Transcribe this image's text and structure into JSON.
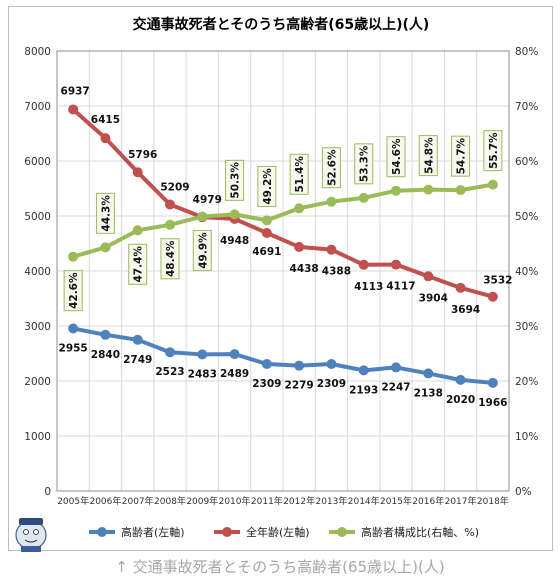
{
  "chart_data": {
    "type": "line",
    "title": "交通事故死者とそのうち高齢者(65歳以上)(人)",
    "categories": [
      "2005年",
      "2006年",
      "2007年",
      "2008年",
      "2009年",
      "2010年",
      "2011年",
      "2012年",
      "2013年",
      "2014年",
      "2015年",
      "2016年",
      "2017年",
      "2018年"
    ],
    "y_left": {
      "min": 0,
      "max": 8000,
      "step": 1000,
      "ticks": [
        "0",
        "1000",
        "2000",
        "3000",
        "4000",
        "5000",
        "6000",
        "7000",
        "8000"
      ]
    },
    "y_right": {
      "min": 0,
      "max": 80,
      "step": 10,
      "ticks": [
        "0%",
        "10%",
        "20%",
        "30%",
        "40%",
        "50%",
        "60%",
        "70%",
        "80%"
      ]
    },
    "grid": true,
    "legend_position": "bottom",
    "series": [
      {
        "name": "高齢者(左軸)",
        "axis": "left",
        "color": "#4f81bd",
        "values": [
          2955,
          2840,
          2749,
          2523,
          2483,
          2489,
          2309,
          2279,
          2309,
          2193,
          2247,
          2138,
          2020,
          1966
        ],
        "labels": [
          "2955",
          "2840",
          "2749",
          "2523",
          "2483",
          "2489",
          "2309",
          "2279",
          "2309",
          "2193",
          "2247",
          "2138",
          "2020",
          "1966"
        ]
      },
      {
        "name": "全年齢(左軸)",
        "axis": "left",
        "color": "#c0504d",
        "values": [
          6937,
          6415,
          5796,
          5209,
          4979,
          4948,
          4691,
          4438,
          4388,
          4113,
          4117,
          3904,
          3694,
          3532
        ],
        "labels": [
          "6937",
          "6415",
          "5796",
          "5209",
          "4979",
          "4948",
          "4691",
          "4438",
          "4388",
          "4113",
          "4117",
          "3904",
          "3694",
          "3532"
        ]
      },
      {
        "name": "高齢者構成比(右軸、%)",
        "axis": "right",
        "color": "#9bbb59",
        "values": [
          42.6,
          44.3,
          47.4,
          48.4,
          49.9,
          50.3,
          49.2,
          51.4,
          52.6,
          53.3,
          54.6,
          54.8,
          54.7,
          55.7
        ],
        "labels": [
          "42.6%",
          "44.3%",
          "47.4%",
          "48.4%",
          "49.9%",
          "50.3%",
          "49.2%",
          "51.4%",
          "52.6%",
          "53.3%",
          "54.6%",
          "54.8%",
          "54.7%",
          "55.7%"
        ]
      }
    ]
  },
  "caption": "↑ 交通事故死者とそのうち高齢者(65歳以上)(人)",
  "mascot_icon": "mascot-icon"
}
